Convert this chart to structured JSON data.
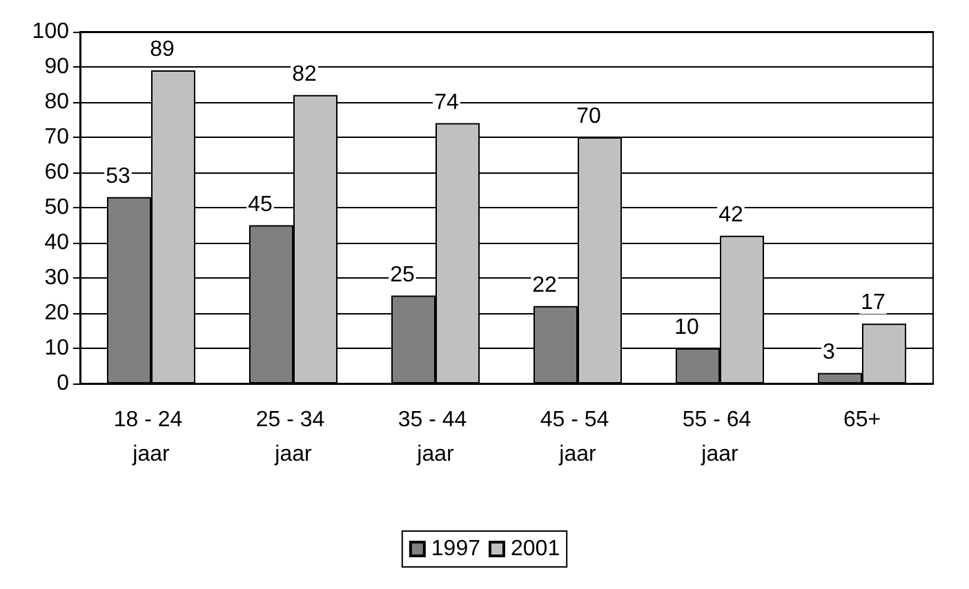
{
  "chart_data": {
    "type": "bar",
    "categories": [
      "18 - 24 jaar",
      "25 - 34 jaar",
      "35 - 44 jaar",
      "45 - 54 jaar",
      "55 - 64 jaar",
      "65+"
    ],
    "series": [
      {
        "name": "1997",
        "color": "#808080",
        "values": [
          53,
          45,
          25,
          22,
          10,
          3
        ]
      },
      {
        "name": "2001",
        "color": "#c0c0c0",
        "values": [
          89,
          82,
          74,
          70,
          42,
          17
        ]
      }
    ],
    "ylim": [
      0,
      100
    ],
    "yticks": [
      0,
      10,
      20,
      30,
      40,
      50,
      60,
      70,
      80,
      90,
      100
    ],
    "grid": "y",
    "legend": "bottom",
    "data_labels": true
  }
}
